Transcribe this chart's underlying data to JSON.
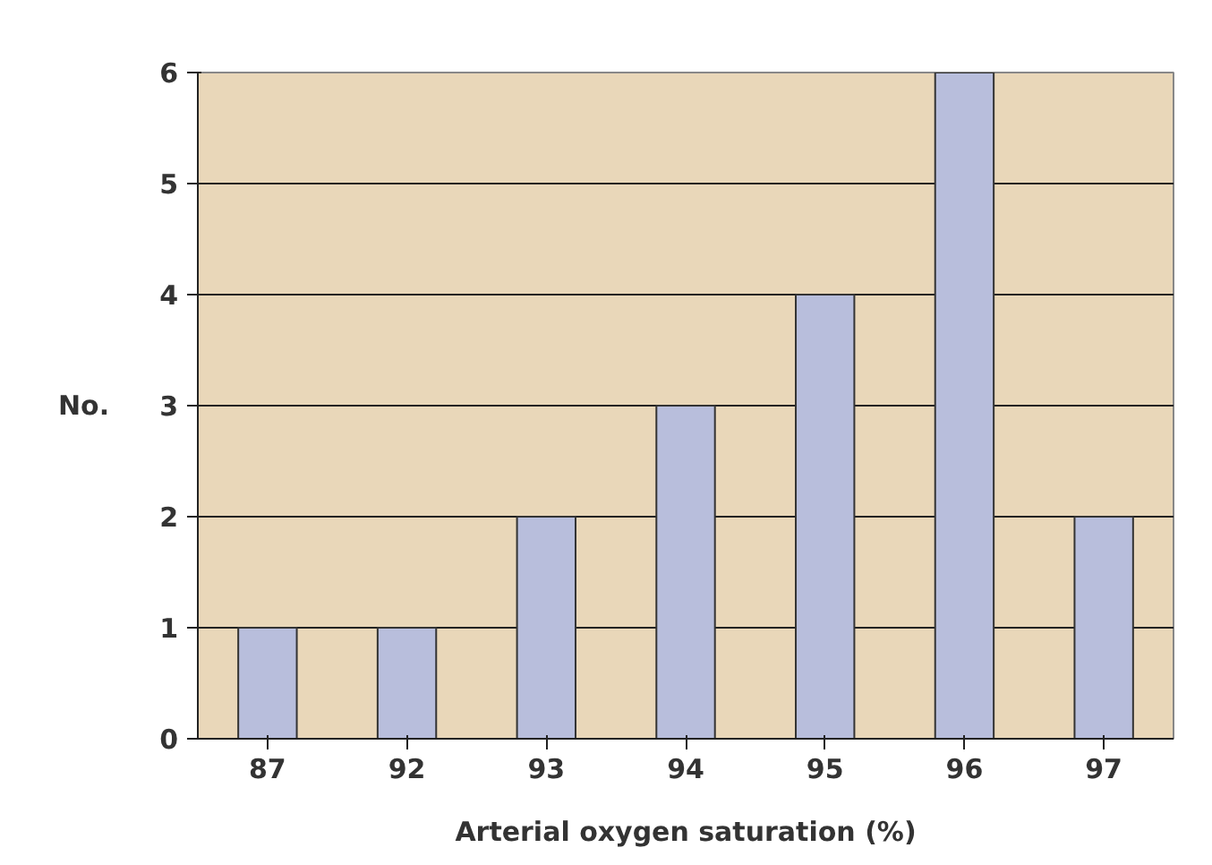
{
  "chart_data": {
    "type": "bar",
    "xlabel": "Arterial oxygen saturation (%)",
    "ylabel": "No.",
    "categories": [
      "87",
      "92",
      "93",
      "94",
      "95",
      "96",
      "97"
    ],
    "values": [
      1,
      1,
      2,
      3,
      4,
      6,
      2
    ],
    "color": "#b8bedc",
    "ylim": [
      0,
      6
    ],
    "yticks": [
      0,
      1,
      2,
      3,
      4,
      5,
      6
    ],
    "grid": "y"
  }
}
